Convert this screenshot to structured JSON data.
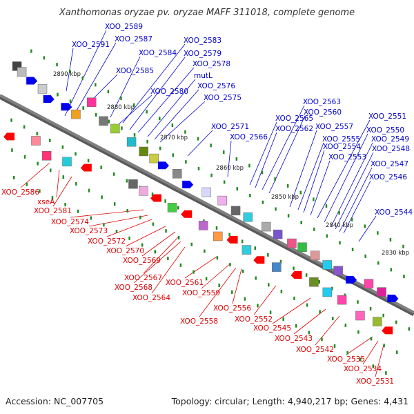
{
  "title": "Xanthomonas oryzae pv. oryzae MAFF 311018, complete genome",
  "footer": {
    "accession": "Accession: NC_007705",
    "stats": "Topology: circular; Length: 4,940,217 bp; Genes: 4,431"
  },
  "colors": {
    "forward_label": "#0000cc",
    "reverse_label": "#dd0000",
    "backbone": "#808080",
    "tick": "#228b22",
    "forward_gene": "#0000ee",
    "reverse_gene": "#ff0000"
  },
  "ruler": [
    "2890 kbp",
    "2880 kbp",
    "2870 kbp",
    "2860 kbp",
    "2850 kbp",
    "2840 kbp",
    "2830 kbp"
  ],
  "forward_labels": [
    "XOO_2589",
    "XOO_2591",
    "XOO_2587",
    "XOO_2583",
    "XOO_2584",
    "XOO_2579",
    "XOO_2578",
    "XOO_2585",
    "mutL",
    "XOO_2576",
    "XOO_2580",
    "XOO_2575",
    "XOO_2563",
    "XOO_2565",
    "XOO_2560",
    "XOO_2571",
    "XOO_2562",
    "XOO_2557",
    "XOO_2551",
    "XOO_2566",
    "XOO_2550",
    "XOO_2555",
    "XOO_2549",
    "XOO_2554",
    "XOO_2548",
    "XOO_2553",
    "XOO_2547",
    "XOO_2546",
    "XOO_2544"
  ],
  "reverse_labels": [
    "XOO_2586",
    "xseA",
    "XOO_2581",
    "XOO_2574",
    "XOO_2573",
    "XOO_2572",
    "XOO_2570",
    "XOO_2569",
    "XOO_2567",
    "XOO_2568",
    "XOO_2564",
    "XOO_2561",
    "XOO_2559",
    "XOO_2556",
    "XOO_2558",
    "XOO_2552",
    "XOO_2545",
    "XOO_2543",
    "XOO_2542",
    "XOO_2535",
    "XOO_2534",
    "XOO_2531"
  ]
}
